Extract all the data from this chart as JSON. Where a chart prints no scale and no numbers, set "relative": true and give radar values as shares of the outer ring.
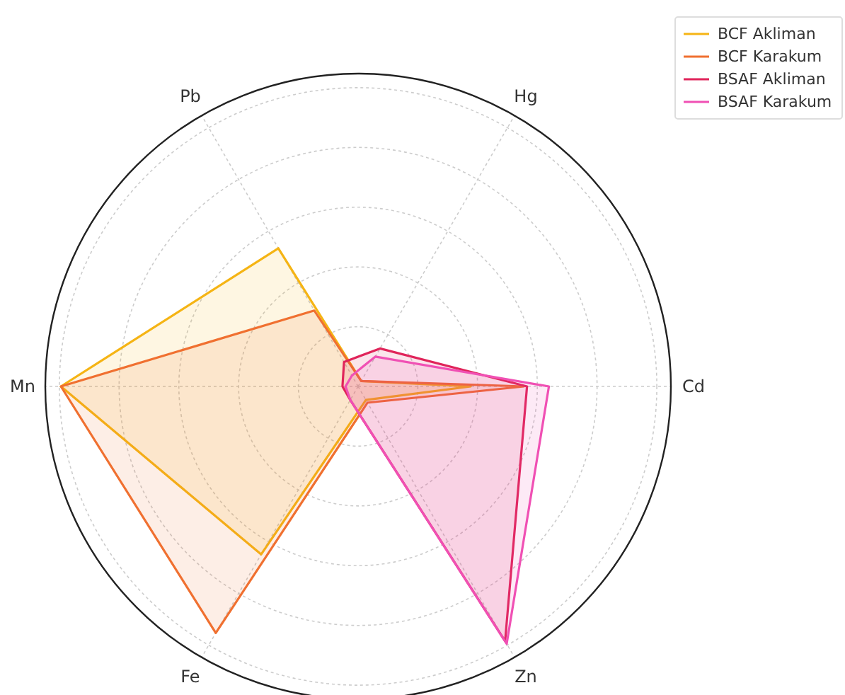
{
  "chart_data": {
    "type": "radar",
    "relative": true,
    "categories": [
      "Hg",
      "Cd",
      "Zn",
      "Fe",
      "Mn",
      "Pb"
    ],
    "series": [
      {
        "name": "BCF Akliman",
        "color": "#f5b414",
        "values": [
          0.02,
          0.36,
          0.05,
          0.62,
          0.95,
          0.51
        ]
      },
      {
        "name": "BCF Karakum",
        "color": "#f07030",
        "values": [
          0.02,
          0.53,
          0.06,
          0.91,
          0.95,
          0.28
        ]
      },
      {
        "name": "BSAF Akliman",
        "color": "#e0245a",
        "values": [
          0.14,
          0.54,
          0.94,
          0.05,
          0.05,
          0.09
        ]
      },
      {
        "name": "BSAF Karakum",
        "color": "#f050b4",
        "values": [
          0.11,
          0.61,
          0.95,
          0.05,
          0.04,
          0.04
        ]
      }
    ],
    "grid": true,
    "legend": "top right"
  }
}
